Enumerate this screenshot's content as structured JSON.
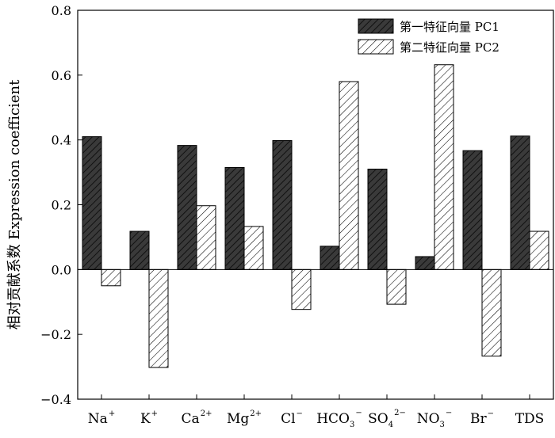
{
  "chart_data": {
    "type": "bar",
    "categories": [
      {
        "base": "Na",
        "sup": "+",
        "sub": ""
      },
      {
        "base": "K",
        "sup": "+",
        "sub": ""
      },
      {
        "base": "Ca",
        "sup": "2+",
        "sub": ""
      },
      {
        "base": "Mg",
        "sup": "2+",
        "sub": ""
      },
      {
        "base": "Cl",
        "sup": "−",
        "sub": ""
      },
      {
        "base": "HCO",
        "sub": "3",
        "sup": "−"
      },
      {
        "base": "SO",
        "sub": "4",
        "sup": "2−"
      },
      {
        "base": "NO",
        "sub": "3",
        "sup": "−"
      },
      {
        "base": "Br",
        "sup": "−",
        "sub": ""
      },
      {
        "base": "TDS",
        "sup": "",
        "sub": ""
      }
    ],
    "series": [
      {
        "name": "第一特征向量 PC1",
        "values": [
          0.41,
          0.118,
          0.383,
          0.315,
          0.398,
          0.072,
          0.31,
          0.04,
          0.367,
          0.412
        ]
      },
      {
        "name": "第二特征向量 PC2",
        "values": [
          -0.05,
          -0.302,
          0.197,
          0.133,
          -0.123,
          0.58,
          -0.107,
          0.632,
          -0.267,
          0.118
        ]
      }
    ],
    "ylabel": "相对贡献系数 Expression coefficient",
    "ylim": [
      -0.4,
      0.8
    ],
    "yticks": [
      -0.4,
      -0.2,
      0.0,
      0.2,
      0.4,
      0.6,
      0.8
    ],
    "ytick_labels": [
      "−0.4",
      "−0.2",
      "0.0",
      "0.2",
      "0.4",
      "0.6",
      "0.8"
    ],
    "grid": false,
    "legend": "top-right",
    "colors": {
      "pc1_fill": "#3a3a3a",
      "pc2_fill": "#ffffff",
      "stroke": "#000000"
    }
  }
}
